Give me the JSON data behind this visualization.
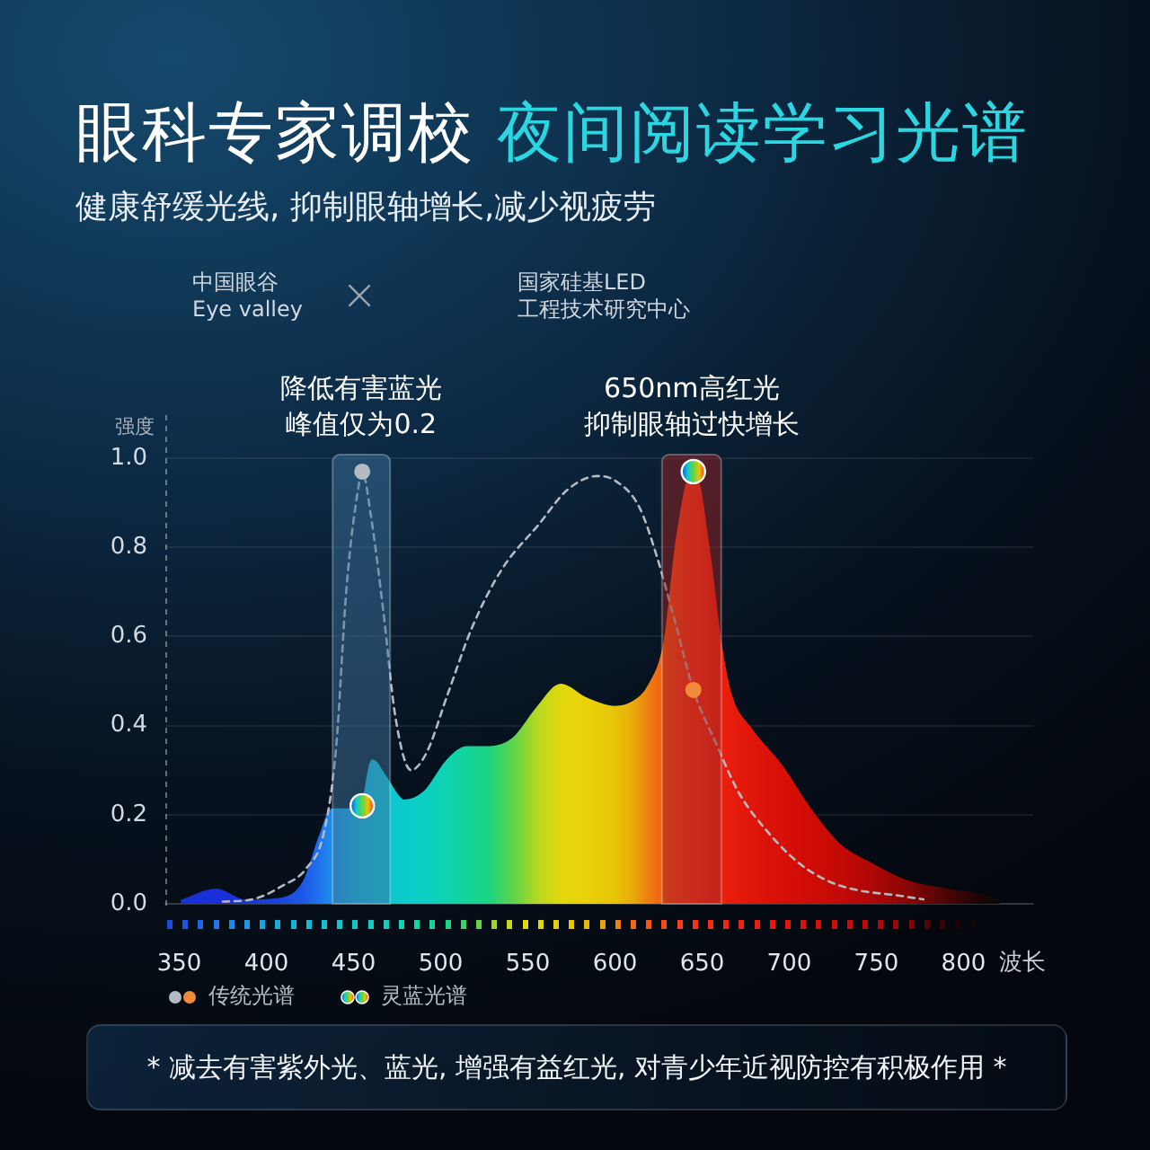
{
  "chart_data": {
    "type": "area",
    "title": "眼科专家调校 夜间阅读学习光谱",
    "subtitle": "健康舒缓光线, 抑制眼轴增长,减少视疲劳",
    "xlabel": "波长",
    "ylabel": "强度",
    "annotations": [
      "中国眼谷\nEye valley",
      "×",
      "国家硅基LED\n工程技术研究中心",
      "* 减去有害紫外光、蓝光, 增强有益红光, 对青少年近视防控有积极作用 *"
    ],
    "xlim": [
      342,
      840
    ],
    "xticks": [
      350,
      400,
      450,
      500,
      550,
      600,
      650,
      700,
      750,
      800
    ],
    "ylim": [
      0,
      1
    ],
    "yticks": [
      {
        "value": 0,
        "label": "0.0"
      },
      0.2,
      0.4,
      0.6,
      0.8,
      {
        "value": 1,
        "label": "1.0"
      }
    ],
    "grid": "y",
    "legend": "bottom left",
    "bands": [
      {
        "axis": "x",
        "from": 438,
        "to": 471,
        "label": "降低有害蓝光峰值仅为0.2",
        "color": "#3b6f99"
      },
      {
        "axis": "x",
        "from": 627,
        "to": 661,
        "label": "650nm高红光抑制眼轴过快增长",
        "color": "#9a2222"
      }
    ],
    "series": [
      {
        "name": "传统光谱",
        "type": "line",
        "color": "#b4bac2",
        "line_style": "dashed",
        "x": [
          375,
          392,
          409,
          423,
          433,
          440,
          446,
          453,
          455,
          460,
          467,
          474,
          483,
          492,
          504,
          518,
          535,
          556,
          573,
          590,
          600,
          614,
          624,
          634,
          645,
          658,
          671,
          688,
          706,
          723,
          740,
          760,
          777
        ],
        "values": [
          0.005,
          0.01,
          0.04,
          0.08,
          0.16,
          0.35,
          0.71,
          0.94,
          0.97,
          0.87,
          0.66,
          0.42,
          0.3,
          0.34,
          0.47,
          0.62,
          0.75,
          0.85,
          0.93,
          0.96,
          0.95,
          0.89,
          0.78,
          0.64,
          0.48,
          0.36,
          0.25,
          0.16,
          0.09,
          0.05,
          0.03,
          0.02,
          0.01
        ]
      },
      {
        "type": "scatter",
        "marker": "circle",
        "colors": [
          "#b4bac2",
          "#f0893a"
        ],
        "x": [
          455,
          645
        ],
        "values": [
          0.97,
          0.48
        ]
      },
      {
        "name": "灵蓝光谱",
        "colors": [
          "#1a2fd8",
          "#1a2fd8",
          "#1a35d8",
          "#1c46e0",
          "#1e5ae8",
          "#1f74ee",
          "#1d90e8",
          "#15a8dc",
          "#12b4d8",
          "#10bcd4",
          "#0ec4d0",
          "#0ccccc",
          "#0cd0c4",
          "#0fd4b0",
          "#14d49a",
          "#1cd480",
          "#60d448",
          "#b8d820",
          "#e2d80c",
          "#e8d208",
          "#e8c408",
          "#e8ac0a",
          "#ee7a10",
          "#f45a14",
          "#f84418",
          "#fa3418",
          "#f42a12",
          "#ee220e",
          "#e81c0c",
          "#e0160a",
          "#d81008",
          "#d00c06",
          "#c40a06",
          "#b00806",
          "#8a0604",
          "#4a0404",
          "#200404",
          "#0c0606"
        ],
        "x": [
          351,
          371,
          388,
          409,
          422,
          431,
          438,
          448,
          455,
          461,
          467,
          479,
          491,
          504,
          515,
          528,
          542,
          556,
          569,
          583,
          600,
          610,
          620,
          629,
          636,
          645,
          654,
          660,
          666,
          678,
          695,
          712,
          729,
          746,
          767,
          791,
          808,
          821
        ],
        "values": [
          0.005,
          0.03,
          0.005,
          0.01,
          0.05,
          0.15,
          0.21,
          0.21,
          0.22,
          0.32,
          0.29,
          0.23,
          0.25,
          0.32,
          0.35,
          0.35,
          0.37,
          0.44,
          0.49,
          0.46,
          0.44,
          0.45,
          0.49,
          0.59,
          0.82,
          0.97,
          0.78,
          0.59,
          0.47,
          0.39,
          0.31,
          0.21,
          0.13,
          0.09,
          0.05,
          0.03,
          0.02,
          0.005
        ]
      },
      {
        "type": "scatter",
        "marker": "circle",
        "x": [
          455,
          645
        ],
        "values": [
          0.22,
          0.97
        ]
      }
    ]
  }
}
